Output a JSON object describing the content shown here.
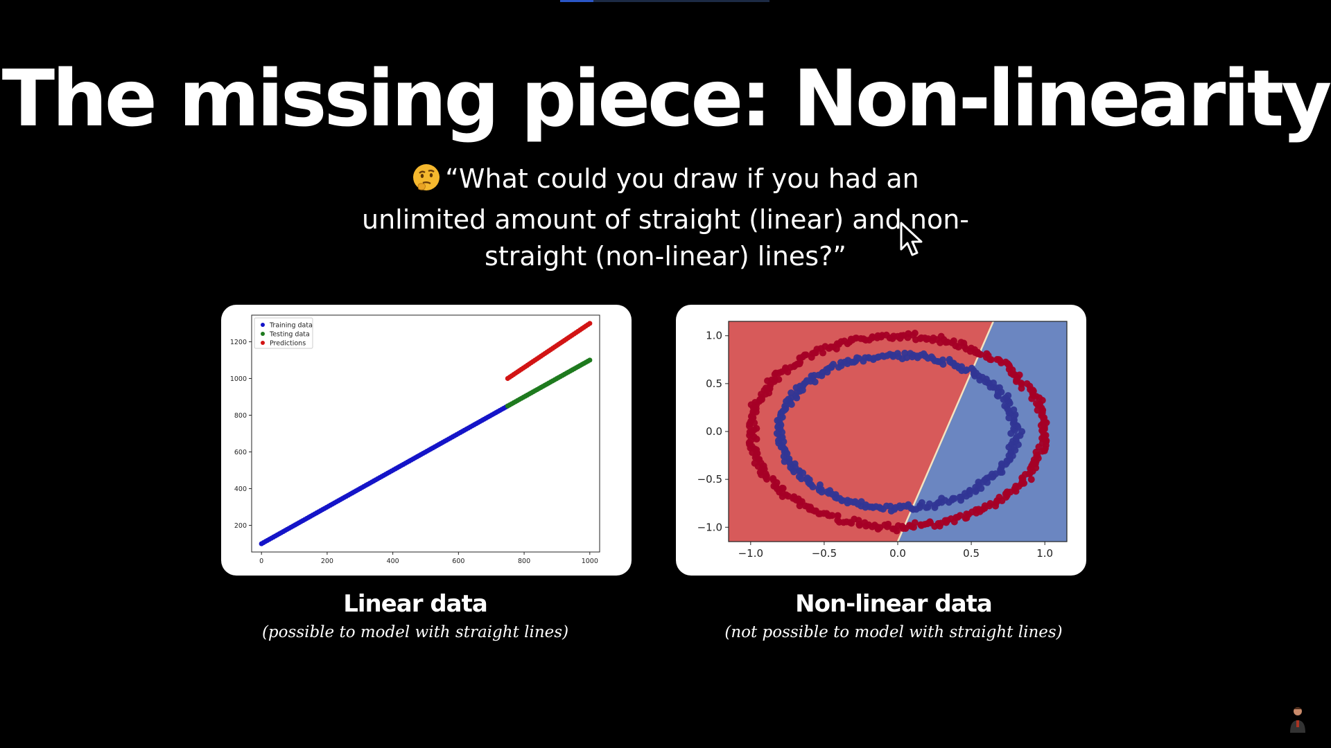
{
  "slide": {
    "title": "The missing piece: Non-linearity",
    "quote": "“What could you draw if you had an unlimited amount of straight (linear) and non-straight (non-linear) lines?”",
    "quote_icon": "thinking-face-emoji",
    "video_progress": 0.16
  },
  "panels": [
    {
      "caption_title": "Linear data",
      "caption_sub": "(possible to model with straight lines)"
    },
    {
      "caption_title": "Non-linear data",
      "caption_sub": "(not possible to model with straight lines)"
    }
  ],
  "chart_data": [
    {
      "type": "scatter",
      "xlim": [
        -30,
        1030
      ],
      "ylim": [
        55,
        1345
      ],
      "x_ticks": [
        "0",
        "200",
        "400",
        "600",
        "800",
        "1000"
      ],
      "y_ticks": [
        "200",
        "400",
        "600",
        "800",
        "1000",
        "1200"
      ],
      "legend_position": "top-left",
      "grid": false,
      "series": [
        {
          "name": "Training data",
          "color": "#1414c8",
          "x": [
            0,
            750
          ],
          "y": [
            100,
            850
          ]
        },
        {
          "name": "Testing data",
          "color": "#1e7a1e",
          "x": [
            750,
            1000
          ],
          "y": [
            850,
            1100
          ]
        },
        {
          "name": "Predictions",
          "color": "#d21414",
          "x": [
            750,
            1000
          ],
          "y": [
            1000,
            1300
          ]
        }
      ]
    },
    {
      "type": "scatter",
      "xlim": [
        -1.15,
        1.15
      ],
      "ylim": [
        -1.15,
        1.15
      ],
      "x_ticks": [
        "−1.0",
        "−0.5",
        "0.0",
        "0.5",
        "1.0"
      ],
      "y_ticks": [
        "−1.0",
        "−0.5",
        "0.0",
        "0.5",
        "1.0"
      ],
      "grid": false,
      "decision_boundary": {
        "x_top": 0.65,
        "x_bottom": 0.0
      },
      "regions": {
        "left": "#d75a5a",
        "right": "#6b86c1"
      },
      "series": [
        {
          "name": "outer ring",
          "color": "#a50026",
          "radius": 1.0
        },
        {
          "name": "inner ring",
          "color": "#313695",
          "radius": 0.8
        }
      ]
    }
  ]
}
